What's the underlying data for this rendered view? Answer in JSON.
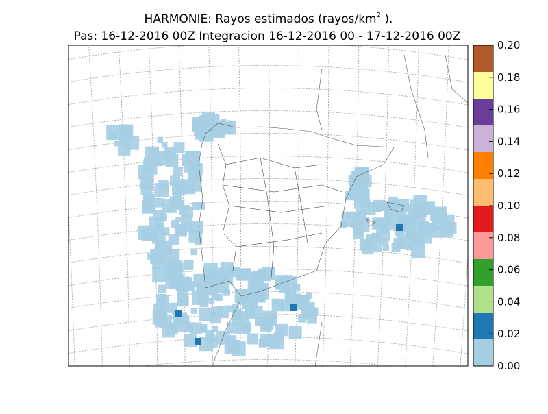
{
  "map": {
    "title": [
      "HARMONIE: Rayos estimados  (rayos/km",
      "2",
      " )."
    ],
    "subtitle": "Pas: 16-12-2016 00Z Integracion 16-12-2016 00 - 17-12-2016 00Z",
    "colorbar": {
      "lim": [
        0,
        0.2
      ],
      "ticks": [
        {
          "value": 0,
          "label": "0.00"
        },
        {
          "value": 0.02,
          "label": "0.02"
        },
        {
          "value": 0.04,
          "label": "0.04"
        },
        {
          "value": 0.06,
          "label": "0.06"
        },
        {
          "value": 0.08,
          "label": "0.08"
        },
        {
          "value": 0.1,
          "label": "0.10"
        },
        {
          "value": 0.12,
          "label": "0.12"
        },
        {
          "value": 0.14,
          "label": "0.14"
        },
        {
          "value": 0.16,
          "label": "0.16"
        },
        {
          "value": 0.18,
          "label": "0.18"
        },
        {
          "value": 0.2,
          "label": "0.20"
        }
      ],
      "colors": [
        "#a6cee3",
        "#1f78b4",
        "#b2df8a",
        "#33a02c",
        "#fb9a99",
        "#e31a1c",
        "#fdbf6f",
        "#ff7f00",
        "#cab2d6",
        "#6a3d9a",
        "#ffff99",
        "#b15928"
      ]
    }
  }
}
